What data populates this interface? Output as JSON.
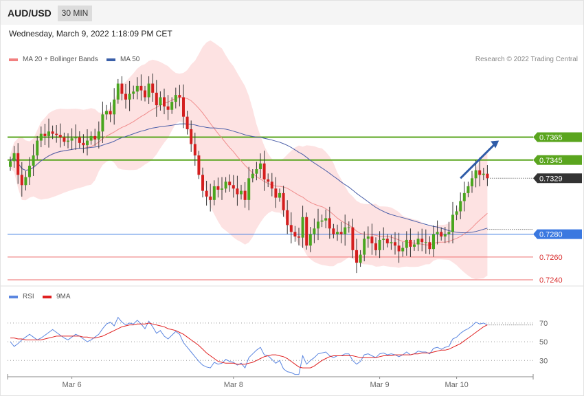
{
  "header": {
    "symbol": "AUD/USD",
    "interval": "30 MIN",
    "datetime": "Wednesday, March 9, 2022 1:18:09 PM CET",
    "copyright": "Research © 2022 Trading Central"
  },
  "legend_main": [
    {
      "label": "MA 20 + Bollinger Bands",
      "color": "#f28080"
    },
    {
      "label": "MA 50",
      "color": "#3a5fa8"
    }
  ],
  "legend_rsi": [
    {
      "label": "RSI",
      "color": "#5b86e0"
    },
    {
      "label": "9MA",
      "color": "#e02020"
    }
  ],
  "colors": {
    "bull": "#4aa61f",
    "bear": "#d41e1e",
    "resistance": "#5aa51e",
    "support_blue": "#3a78e0",
    "support_red": "#ee6b6b",
    "band_fill": "#fde2e2",
    "ma20": "#f08c8c",
    "ma50": "#4a5ea8",
    "current": "#333333"
  },
  "chart_data": [
    {
      "type": "candlestick",
      "title": "AUD/USD",
      "ylim": [
        0.7237,
        0.7428
      ],
      "x_ticks": [
        {
          "label": "Mar 6",
          "index": 16
        },
        {
          "label": "Mar 8",
          "index": 58
        },
        {
          "label": "Mar 9",
          "index": 96
        },
        {
          "label": "Mar 10",
          "index": 116
        }
      ],
      "levels": [
        {
          "value": 0.7365,
          "label": "0.7365",
          "style": "resistance",
          "badge": true
        },
        {
          "value": 0.7345,
          "label": "0.7345",
          "style": "resistance",
          "badge": true
        },
        {
          "value": 0.7329,
          "label": "0.7329",
          "style": "current",
          "badge": true
        },
        {
          "value": 0.728,
          "label": "0.7280",
          "style": "support_blue",
          "badge": true
        },
        {
          "value": 0.726,
          "label": "0.7260",
          "style": "support_red",
          "badge": false
        },
        {
          "value": 0.724,
          "label": "0.7240",
          "style": "support_red",
          "badge": false
        }
      ],
      "arrow": {
        "from": [
          117,
          0.7329
        ],
        "to": [
          127,
          0.7362
        ]
      },
      "closes": [
        0.7344,
        0.7351,
        0.7332,
        0.7323,
        0.733,
        0.734,
        0.7349,
        0.7362,
        0.7368,
        0.7366,
        0.737,
        0.7368,
        0.7367,
        0.7365,
        0.7361,
        0.7362,
        0.7364,
        0.7365,
        0.736,
        0.7358,
        0.7362,
        0.7366,
        0.7363,
        0.737,
        0.7385,
        0.7388,
        0.7385,
        0.7398,
        0.7412,
        0.7403,
        0.7398,
        0.7403,
        0.7405,
        0.741,
        0.7406,
        0.74,
        0.7412,
        0.7404,
        0.7393,
        0.74,
        0.7392,
        0.7389,
        0.7396,
        0.7402,
        0.74,
        0.7383,
        0.7372,
        0.7359,
        0.7349,
        0.7332,
        0.7318,
        0.7313,
        0.731,
        0.7322,
        0.7319,
        0.732,
        0.7326,
        0.7323,
        0.732,
        0.7315,
        0.7318,
        0.731,
        0.7329,
        0.7333,
        0.7337,
        0.7342,
        0.7328,
        0.7326,
        0.732,
        0.7312,
        0.7316,
        0.7301,
        0.7288,
        0.7282,
        0.7278,
        0.7277,
        0.7295,
        0.727,
        0.728,
        0.7285,
        0.7291,
        0.7292,
        0.7294,
        0.7285,
        0.728,
        0.7282,
        0.728,
        0.7286,
        0.7286,
        0.7266,
        0.7255,
        0.7262,
        0.7276,
        0.7278,
        0.7272,
        0.7266,
        0.7275,
        0.7276,
        0.7272,
        0.7273,
        0.727,
        0.7265,
        0.7268,
        0.7275,
        0.7269,
        0.7271,
        0.7276,
        0.7273,
        0.7273,
        0.7267,
        0.728,
        0.7282,
        0.7278,
        0.728,
        0.7282,
        0.7297,
        0.73,
        0.7309,
        0.7316,
        0.7322,
        0.7329,
        0.7336,
        0.7332,
        0.7333,
        0.7329
      ]
    },
    {
      "type": "line",
      "title": "RSI",
      "ylim": [
        14,
        92
      ],
      "y_ticks": [
        70,
        50,
        30
      ],
      "series": [
        {
          "name": "RSI",
          "values": [
            50,
            45,
            48,
            52,
            55,
            58,
            55,
            52,
            54,
            57,
            60,
            63,
            60,
            57,
            54,
            52,
            55,
            58,
            56,
            53,
            50,
            52,
            55,
            58,
            64,
            69,
            71,
            67,
            76,
            71,
            68,
            70,
            69,
            73,
            69,
            64,
            72,
            66,
            59,
            62,
            56,
            53,
            57,
            61,
            58,
            49,
            44,
            39,
            34,
            29,
            25,
            23,
            22,
            28,
            26,
            27,
            31,
            29,
            28,
            25,
            27,
            22,
            33,
            37,
            41,
            44,
            36,
            35,
            31,
            27,
            30,
            21,
            18,
            17,
            15,
            15,
            35,
            26,
            30,
            33,
            37,
            38,
            39,
            35,
            33,
            35,
            35,
            37,
            37,
            30,
            26,
            29,
            36,
            37,
            35,
            33,
            37,
            38,
            36,
            37,
            36,
            34,
            36,
            39,
            36,
            37,
            40,
            39,
            39,
            37,
            43,
            44,
            42,
            44,
            45,
            53,
            55,
            59,
            62,
            64,
            67,
            71,
            69,
            70,
            68
          ]
        },
        {
          "name": "9MA",
          "values": [
            54,
            54,
            53,
            53,
            52,
            52,
            52,
            52,
            52,
            53,
            54,
            55,
            56,
            56,
            56,
            56,
            56,
            56,
            56,
            55,
            55,
            54,
            54,
            55,
            56,
            58,
            60,
            62,
            64,
            66,
            67,
            68,
            68,
            69,
            69,
            69,
            70,
            69,
            68,
            67,
            66,
            64,
            63,
            62,
            60,
            58,
            55,
            52,
            49,
            46,
            42,
            38,
            35,
            32,
            29,
            28,
            27,
            27,
            27,
            26,
            26,
            26,
            27,
            28,
            30,
            32,
            34,
            35,
            36,
            36,
            35,
            34,
            32,
            29,
            26,
            23,
            22,
            22,
            22,
            24,
            27,
            30,
            32,
            34,
            35,
            35,
            35,
            35,
            35,
            35,
            34,
            33,
            33,
            33,
            33,
            33,
            34,
            35,
            35,
            35,
            36,
            36,
            36,
            36,
            36,
            37,
            37,
            38,
            38,
            38,
            39,
            40,
            41,
            41,
            42,
            44,
            46,
            48,
            51,
            54,
            57,
            60,
            63,
            66,
            68
          ]
        }
      ]
    }
  ]
}
